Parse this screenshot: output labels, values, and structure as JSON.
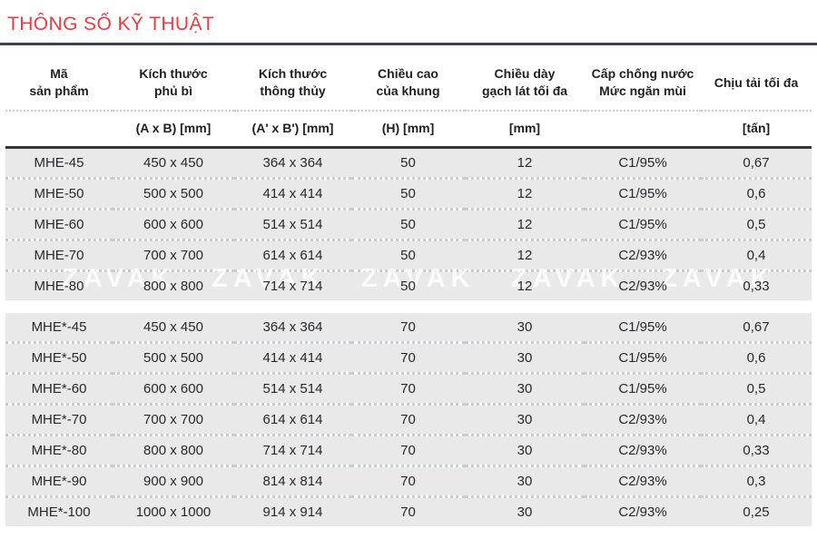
{
  "header": {
    "title": "THÔNG SỐ KỸ THUẬT"
  },
  "watermark": {
    "text": "ZAVAK",
    "repeat": 6
  },
  "colors": {
    "accent_red": "#ee3a41",
    "rule_dark": "#39414e",
    "row_gray": "#e9e9e9"
  },
  "table": {
    "columns": [
      {
        "line1": "Mã",
        "line2": "sản phẩm",
        "unit": ""
      },
      {
        "line1": "Kích thước",
        "line2": "phủ bì",
        "unit": "(A x B) [mm]"
      },
      {
        "line1": "Kích thước",
        "line2": "thông thủy",
        "unit": "(A' x B') [mm]"
      },
      {
        "line1": "Chiều cao",
        "line2": "của khung",
        "unit": "(H) [mm]"
      },
      {
        "line1": "Chiều dày",
        "line2": "gạch lát tối đa",
        "unit": "[mm]"
      },
      {
        "line1": "Cấp chống nước",
        "line2": "Mức ngăn mùi",
        "unit": ""
      },
      {
        "line1": "Chịu tải tối đa",
        "line2": "",
        "unit": "[tấn]"
      }
    ],
    "groups": [
      {
        "rows": [
          [
            "MHE-45",
            "450 x 450",
            "364 x 364",
            "50",
            "12",
            "C1/95%",
            "0,67"
          ],
          [
            "MHE-50",
            "500 x 500",
            "414 x 414",
            "50",
            "12",
            "C1/95%",
            "0,6"
          ],
          [
            "MHE-60",
            "600 x 600",
            "514 x 514",
            "50",
            "12",
            "C1/95%",
            "0,5"
          ],
          [
            "MHE-70",
            "700 x 700",
            "614 x 614",
            "50",
            "12",
            "C2/93%",
            "0,4"
          ],
          [
            "MHE-80",
            "800 x 800",
            "714 x 714",
            "50",
            "12",
            "C2/93%",
            "0,33"
          ]
        ]
      },
      {
        "rows": [
          [
            "MHE*-45",
            "450 x 450",
            "364 x 364",
            "70",
            "30",
            "C1/95%",
            "0,67"
          ],
          [
            "MHE*-50",
            "500 x 500",
            "414 x 414",
            "70",
            "30",
            "C1/95%",
            "0,6"
          ],
          [
            "MHE*-60",
            "600 x 600",
            "514 x 514",
            "70",
            "30",
            "C1/95%",
            "0,5"
          ],
          [
            "MHE*-70",
            "700 x 700",
            "614 x 614",
            "70",
            "30",
            "C2/93%",
            "0,4"
          ],
          [
            "MHE*-80",
            "800 x 800",
            "714 x 714",
            "70",
            "30",
            "C2/93%",
            "0,33"
          ],
          [
            "MHE*-90",
            "900 x 900",
            "814 x 814",
            "70",
            "30",
            "C2/93%",
            "0,3"
          ],
          [
            "MHE*-100",
            "1000 x 1000",
            "914 x 914",
            "70",
            "30",
            "C2/93%",
            "0,25"
          ]
        ]
      }
    ]
  }
}
